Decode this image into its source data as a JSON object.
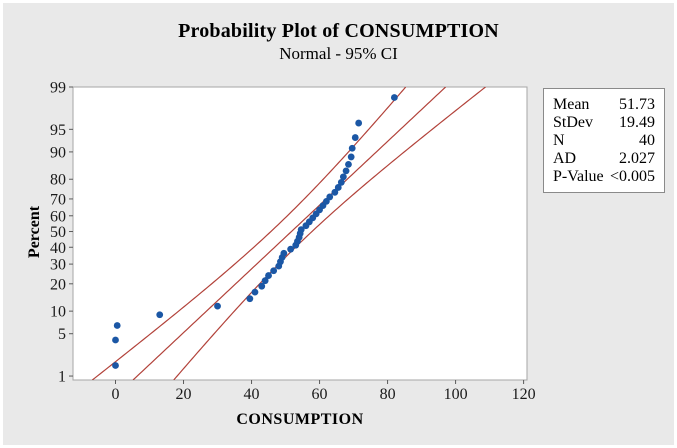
{
  "chart_data": {
    "type": "scatter",
    "subtype": "normal-probability-plot",
    "title": "Probability Plot of CONSUMPTION",
    "subtitle": "Normal - 95% CI",
    "xlabel": "CONSUMPTION",
    "ylabel": "Percent",
    "x_ticks": [
      0,
      20,
      40,
      60,
      80,
      100,
      120
    ],
    "y_ticks": [
      1,
      5,
      10,
      20,
      30,
      40,
      50,
      60,
      70,
      80,
      90,
      95,
      99
    ],
    "x_range": [
      -12.5,
      121
    ],
    "z_range": [
      -2.39,
      2.3263
    ],
    "y_scale": "probit",
    "grid": false,
    "legend_position": "right",
    "distribution": {
      "mean": 51.73,
      "stdev": 19.49,
      "n": 40,
      "ci_level": 95,
      "ci_z": 1.96
    },
    "series": [
      {
        "name": "CONSUMPTION",
        "marker": "circle",
        "points": [
          {
            "x": 0,
            "p": 1.55
          },
          {
            "x": 0,
            "p": 4.04
          },
          {
            "x": 0.5,
            "p": 6.52
          },
          {
            "x": 13,
            "p": 9.01
          },
          {
            "x": 30,
            "p": 11.49
          },
          {
            "x": 39.5,
            "p": 13.98
          },
          {
            "x": 41,
            "p": 16.46
          },
          {
            "x": 43,
            "p": 18.94
          },
          {
            "x": 44,
            "p": 21.43
          },
          {
            "x": 45,
            "p": 23.91
          },
          {
            "x": 46.5,
            "p": 26.4
          },
          {
            "x": 48,
            "p": 28.88
          },
          {
            "x": 48.5,
            "p": 31.37
          },
          {
            "x": 49,
            "p": 33.85
          },
          {
            "x": 49.5,
            "p": 36.34
          },
          {
            "x": 51.5,
            "p": 38.82
          },
          {
            "x": 53,
            "p": 41.3
          },
          {
            "x": 53.5,
            "p": 43.79
          },
          {
            "x": 54,
            "p": 46.27
          },
          {
            "x": 54.3,
            "p": 48.76
          },
          {
            "x": 54.6,
            "p": 51.24
          },
          {
            "x": 56,
            "p": 53.73
          },
          {
            "x": 57,
            "p": 56.21
          },
          {
            "x": 58,
            "p": 58.7
          },
          {
            "x": 59,
            "p": 61.18
          },
          {
            "x": 60,
            "p": 63.66
          },
          {
            "x": 61,
            "p": 66.15
          },
          {
            "x": 62,
            "p": 68.63
          },
          {
            "x": 63,
            "p": 71.12
          },
          {
            "x": 64.5,
            "p": 73.6
          },
          {
            "x": 65.5,
            "p": 76.09
          },
          {
            "x": 66.4,
            "p": 78.57
          },
          {
            "x": 67,
            "p": 81.06
          },
          {
            "x": 67.8,
            "p": 83.54
          },
          {
            "x": 68.5,
            "p": 86.02
          },
          {
            "x": 69.3,
            "p": 88.51
          },
          {
            "x": 69.6,
            "p": 90.99
          },
          {
            "x": 70.5,
            "p": 93.48
          },
          {
            "x": 71.5,
            "p": 95.96
          },
          {
            "x": 82,
            "p": 98.45
          }
        ]
      }
    ],
    "colors": {
      "point": "#1b57a5",
      "line": "#b2423a",
      "plot_bg": "#ffffff",
      "figure_bg": "#e9e9e9",
      "frame": "#a6a6a6",
      "tick": "#5a5a5a",
      "text": "#000000"
    }
  },
  "legend": {
    "rows": [
      {
        "label": "Mean",
        "value": "51.73"
      },
      {
        "label": "StDev",
        "value": "19.49"
      },
      {
        "label": "N",
        "value": "40"
      },
      {
        "label": "AD",
        "value": "2.027"
      },
      {
        "label": "P-Value",
        "value": "<0.005"
      }
    ]
  }
}
